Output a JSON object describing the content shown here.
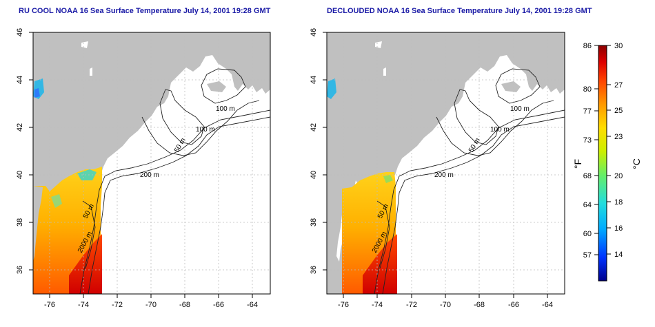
{
  "panels": [
    {
      "title": "RU COOL NOAA 16 Sea Surface Temperature July 14, 2001 19:28 GMT",
      "x_ticks": [
        "-76",
        "-74",
        "-72",
        "-70",
        "-68",
        "-66",
        "-64"
      ],
      "y_ticks": [
        "46",
        "44",
        "42",
        "40",
        "38",
        "36"
      ],
      "contour_labels": [
        "100 m",
        "100 m",
        "50 m",
        "200 m",
        "50 m",
        "2000 m"
      ],
      "has_cloud_pixels": true
    },
    {
      "title": "DECLOUDED NOAA 16 Sea Surface Temperature July 14, 2001 19:28 GMT",
      "x_ticks": [
        "-76",
        "-74",
        "-72",
        "-70",
        "-68",
        "-66",
        "-64"
      ],
      "y_ticks": [
        "46",
        "44",
        "42",
        "40",
        "38",
        "36"
      ],
      "contour_labels": [
        "100 m",
        "100 m",
        "50 m",
        "200 m",
        "50 m",
        "2000 m"
      ],
      "has_cloud_pixels": false
    }
  ],
  "map_extent": {
    "lon": [
      -77,
      -63
    ],
    "lat": [
      35,
      46
    ]
  },
  "colorbar": {
    "fahrenheit_ticks": [
      "86",
      "80",
      "77",
      "73",
      "68",
      "64",
      "60",
      "57"
    ],
    "celsius_ticks": [
      "30",
      "27",
      "25",
      "23",
      "20",
      "18",
      "16",
      "14"
    ],
    "fahrenheit_label": "°F",
    "celsius_label": "°C",
    "range_celsius": [
      12,
      30
    ],
    "colors": [
      "#00008b",
      "#0033ff",
      "#00aaff",
      "#22dddd",
      "#66ee66",
      "#ccee00",
      "#ffdd00",
      "#ff9900",
      "#ff4400",
      "#dd0000",
      "#8b0000"
    ]
  },
  "colors": {
    "land": "#c0c0c0",
    "ocean": "#ffffff",
    "title": "#1a1aa6",
    "grid": "#bdbdbd"
  }
}
